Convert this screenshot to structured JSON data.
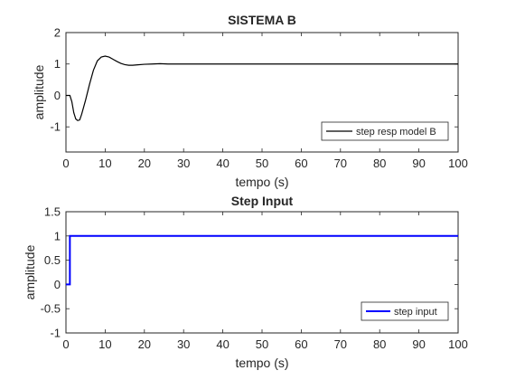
{
  "chart_data": [
    {
      "type": "line",
      "title": "SISTEMA B",
      "xlabel": "tempo (s)",
      "ylabel": "amplitude",
      "xlim": [
        0,
        100
      ],
      "ylim": [
        -1.8,
        2
      ],
      "xticks": [
        "0",
        "10",
        "20",
        "30",
        "40",
        "50",
        "60",
        "70",
        "80",
        "90",
        "100"
      ],
      "yticks": [
        "2",
        "1",
        "0",
        "-1"
      ],
      "ytick_values": [
        2,
        1,
        0,
        -1
      ],
      "grid": false,
      "legend_placement": "bottom-right",
      "series": [
        {
          "name": "step resp model B",
          "color": "#000000",
          "x": [
            0,
            1,
            1.5,
            2,
            2.5,
            3,
            3.5,
            4,
            5,
            6,
            7,
            8,
            9,
            10,
            11,
            12,
            13,
            14,
            15,
            16,
            17,
            18,
            20,
            22,
            24,
            26,
            30,
            40,
            50,
            60,
            70,
            80,
            90,
            100
          ],
          "y": [
            0,
            0,
            -0.2,
            -0.55,
            -0.75,
            -0.8,
            -0.78,
            -0.6,
            -0.15,
            0.35,
            0.8,
            1.1,
            1.22,
            1.25,
            1.22,
            1.15,
            1.08,
            1.02,
            0.98,
            0.96,
            0.96,
            0.97,
            0.99,
            1.0,
            1.01,
            1.0,
            1.0,
            1.0,
            1.0,
            1.0,
            1.0,
            1.0,
            1.0,
            1.0
          ]
        }
      ]
    },
    {
      "type": "line",
      "title": "Step Input",
      "xlabel": "tempo (s)",
      "ylabel": "amplitude",
      "xlim": [
        0,
        100
      ],
      "ylim": [
        -1,
        1.5
      ],
      "xticks": [
        "0",
        "10",
        "20",
        "30",
        "40",
        "50",
        "60",
        "70",
        "80",
        "90",
        "100"
      ],
      "yticks": [
        "1.5",
        "1",
        "0.5",
        "0",
        "-0.5",
        "-1"
      ],
      "ytick_values": [
        1.5,
        1,
        0.5,
        0,
        -0.5,
        -1
      ],
      "grid": false,
      "legend_placement": "bottom-right",
      "series": [
        {
          "name": "step input",
          "color": "#0000ff",
          "x": [
            0,
            1,
            1,
            100
          ],
          "y": [
            0,
            0,
            1,
            1
          ]
        }
      ]
    }
  ]
}
